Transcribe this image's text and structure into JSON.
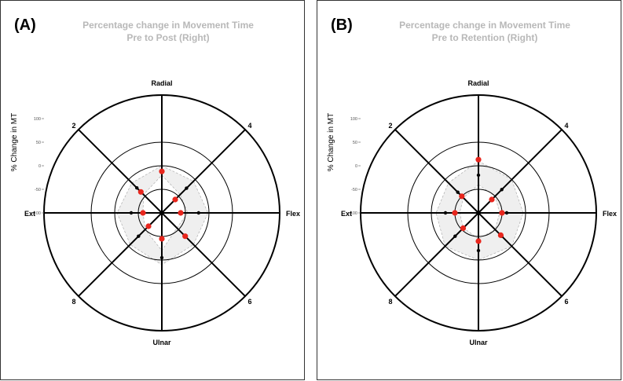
{
  "chart_data": [
    {
      "type": "radar",
      "panel_label": "(A)",
      "title": "Percentage change in Movement Time",
      "subtitle": "Pre to Post (Right)",
      "ylabel": "% Change in MT",
      "r_ticks": [
        100,
        50,
        0,
        -50,
        -100
      ],
      "r_tick_labels": [
        "100",
        "50",
        "0",
        "-50",
        "-100"
      ],
      "ylim": [
        -100,
        150
      ],
      "directions": [
        "Radial",
        "4",
        "Flex",
        "6",
        "Ulnar",
        "8",
        "Ext",
        "2"
      ],
      "series": [
        {
          "color": "#000000",
          "values": [
            -10,
            -26,
            -22,
            -30,
            -5,
            -30,
            -35,
            -25
          ]
        },
        {
          "color": "#e8261d",
          "values": [
            -12,
            -60,
            -60,
            -30,
            -45,
            -60,
            -60,
            -37
          ]
        }
      ],
      "band": {
        "upper": [
          0,
          -5,
          -2,
          -5,
          10,
          -5,
          -5,
          -10
        ],
        "lower": [
          -20,
          -45,
          -45,
          -55,
          -20,
          -50,
          -60,
          -45
        ]
      },
      "grid": true
    },
    {
      "type": "radar",
      "panel_label": "(B)",
      "title": "Percentage change in Movement Time",
      "subtitle": "Pre to Retention (Right)",
      "ylabel": "% Change in MT",
      "r_ticks": [
        100,
        50,
        0,
        -50,
        -100
      ],
      "r_tick_labels": [
        "100",
        "50",
        "0",
        "-50",
        "-100"
      ],
      "ylim": [
        -100,
        150
      ],
      "directions": [
        "Radial",
        "4",
        "Flex",
        "6",
        "Ulnar",
        "8",
        "Ext",
        "2"
      ],
      "series": [
        {
          "color": "#000000",
          "values": [
            -20,
            -30,
            -40,
            -30,
            -20,
            -30,
            -30,
            -38
          ]
        },
        {
          "color": "#e8261d",
          "values": [
            13,
            -60,
            -50,
            -33,
            -40,
            -54,
            -50,
            -50
          ]
        }
      ],
      "band": {
        "upper": [
          10,
          0,
          -5,
          0,
          0,
          0,
          -10,
          -10
        ],
        "lower": [
          -40,
          -50,
          -55,
          -50,
          -45,
          -55,
          -60,
          -55
        ]
      },
      "grid": true
    }
  ]
}
